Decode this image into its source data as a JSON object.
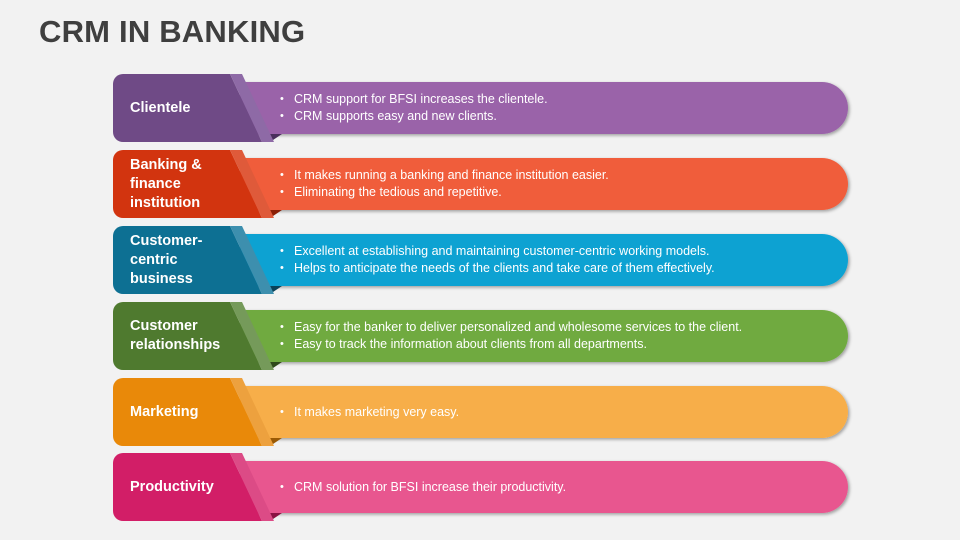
{
  "title": "CRM IN BANKING",
  "rows": [
    {
      "label": "Clientele",
      "dark_color": "#6f4a86",
      "stripe_color": "#8e6aa6",
      "bar_color": "#9a63a9",
      "fold_color": "#4a2f5c",
      "bullets": [
        "CRM support for BFSI increases the clientele.",
        "CRM supports easy and new clients."
      ]
    },
    {
      "label": "Banking &\nfinance\ninstitution",
      "dark_color": "#d2340f",
      "stripe_color": "#df5a3a",
      "bar_color": "#f05d3b",
      "fold_color": "#8a1f06",
      "bullets": [
        "It makes running a banking and finance institution easier.",
        "Eliminating the tedious and repetitive."
      ]
    },
    {
      "label": "Customer-\ncentric\nbusiness",
      "dark_color": "#0d7093",
      "stripe_color": "#3d8fae",
      "bar_color": "#0ea2d2",
      "fold_color": "#0a4258",
      "bullets": [
        "Excellent at establishing and maintaining customer-centric working models.",
        "Helps to anticipate the needs of the clients and take care of them effectively."
      ]
    },
    {
      "label": "Customer\nrelationships",
      "dark_color": "#4f7a2f",
      "stripe_color": "#759a5a",
      "bar_color": "#6faa3f",
      "fold_color": "#2f4a1b",
      "bullets": [
        "Easy for the banker to deliver personalized and wholesome services to the client.",
        "Easy to track the information about clients from all departments."
      ]
    },
    {
      "label": "Marketing",
      "dark_color": "#e98909",
      "stripe_color": "#eda13e",
      "bar_color": "#f7ae4a",
      "fold_color": "#9a5a05",
      "bullets": [
        "It makes marketing very easy."
      ]
    },
    {
      "label": "Productivity",
      "dark_color": "#d21e67",
      "stripe_color": "#dc4b86",
      "bar_color": "#e8578f",
      "fold_color": "#8a1242",
      "bullets": [
        "CRM solution for BFSI increase their productivity."
      ]
    }
  ]
}
